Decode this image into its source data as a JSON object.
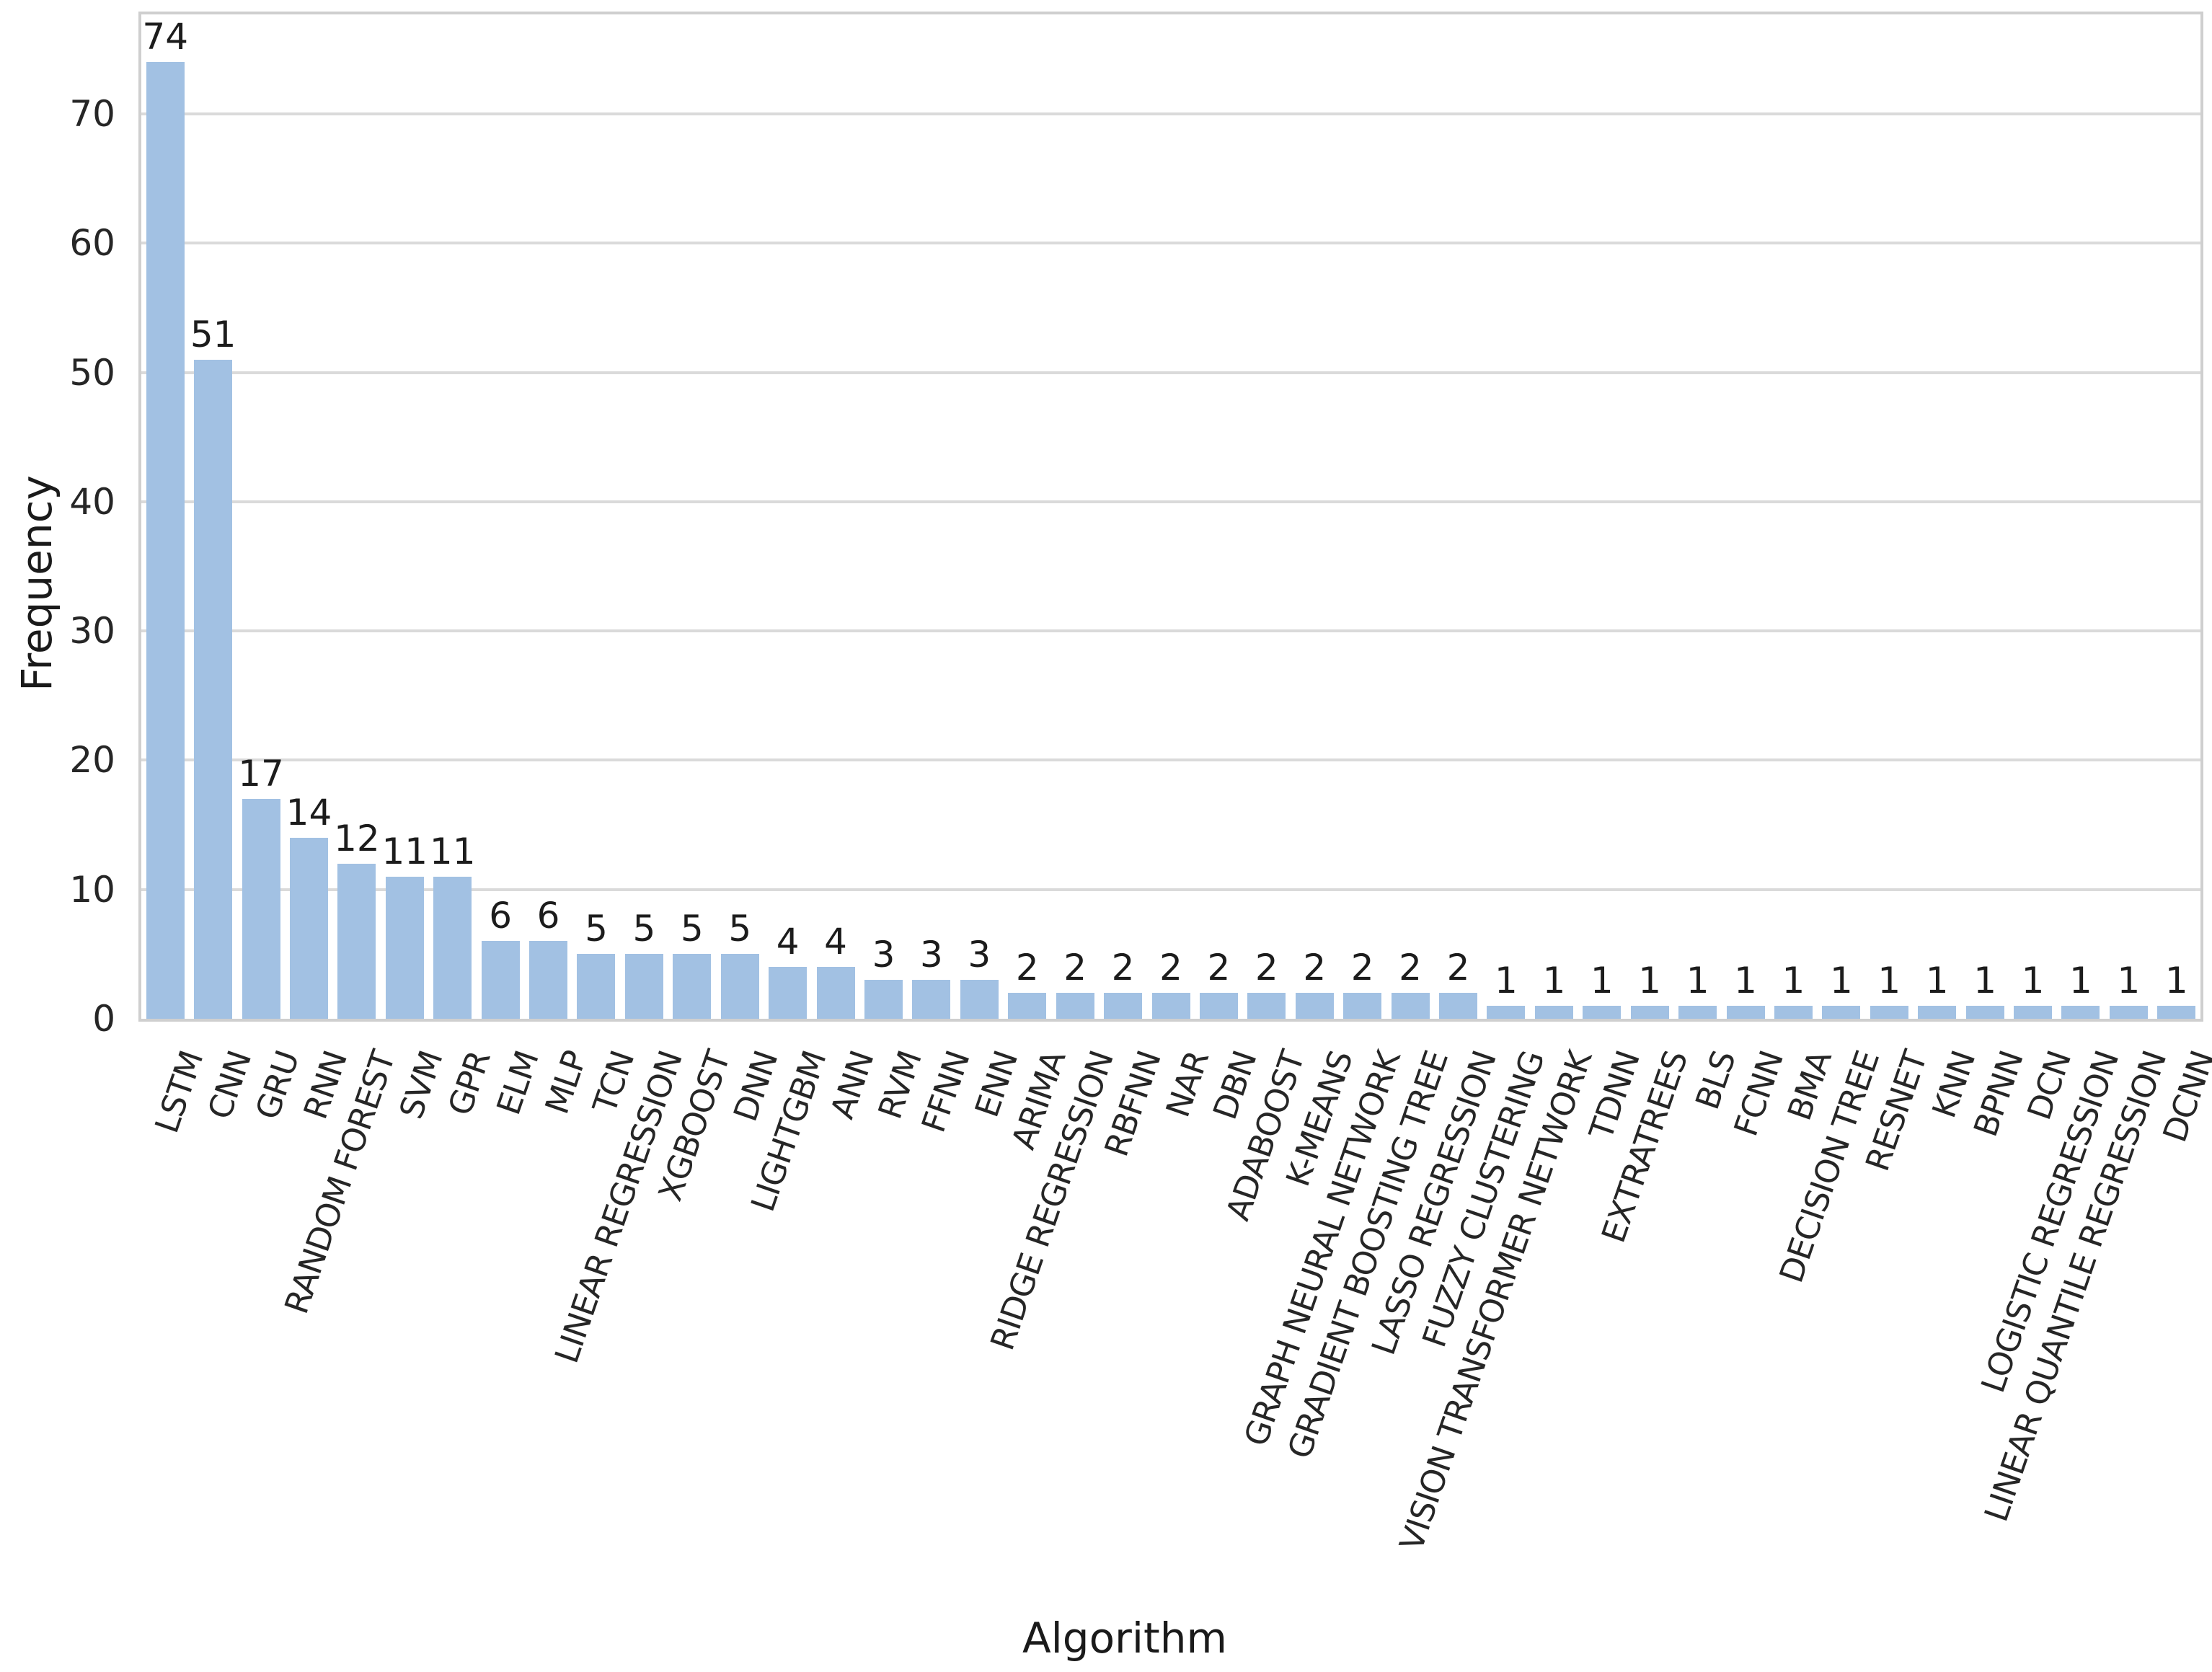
{
  "chart_data": {
    "type": "bar",
    "title": "",
    "xlabel": "Algorithm",
    "ylabel": "Frequency",
    "ylim": [
      0,
      77.7
    ],
    "yticks": [
      0,
      10,
      20,
      30,
      40,
      50,
      60,
      70
    ],
    "grid": "horizontal-gridlines-on",
    "legend": "none",
    "bar_color": "#a2c1e3",
    "gridline_color": "#dadada",
    "spine_color": "#cfcfcf",
    "text_color": "#262626",
    "bar_value_labels_shown": true,
    "x_tick_rotation_deg": 71,
    "categories": [
      "LSTM",
      "CNN",
      "GRU",
      "RNN",
      "RANDOM FOREST",
      "SVM",
      "GPR",
      "ELM",
      "MLP",
      "TCN",
      "LINEAR REGRESSION",
      "XGBOOST",
      "DNN",
      "LIGHTGBM",
      "ANN",
      "RVM",
      "FFNN",
      "ENN",
      "ARIMA",
      "RIDGE REGRESSION",
      "RBFNN",
      "NAR",
      "DBN",
      "ADABOOST",
      "K-MEANS",
      "GRAPH NEURAL NETWORK",
      "GRADIENT BOOSTING TREE",
      "LASSO REGRESSION",
      "FUZZY CLUSTERING",
      "VISION TRANSFORMER NETWORK",
      "TDNN",
      "EXTRATREES",
      "BLS",
      "FCNN",
      "BMA",
      "DECISION TREE",
      "RESNET",
      "KNN",
      "BPNN",
      "DCN",
      "LOGISTIC REGRESSION",
      "LINEAR QUANTILE REGRESSION",
      "DCNN"
    ],
    "values": [
      74,
      51,
      17,
      14,
      12,
      11,
      11,
      6,
      6,
      5,
      5,
      5,
      5,
      4,
      4,
      3,
      3,
      3,
      2,
      2,
      2,
      2,
      2,
      2,
      2,
      2,
      2,
      2,
      1,
      1,
      1,
      1,
      1,
      1,
      1,
      1,
      1,
      1,
      1,
      1,
      1,
      1,
      1
    ]
  }
}
